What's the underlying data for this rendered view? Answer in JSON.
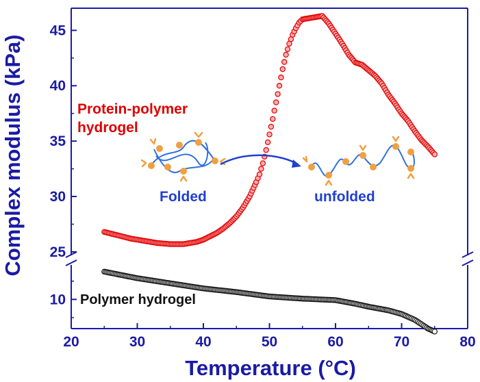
{
  "chart_data": {
    "type": "scatter",
    "title": "",
    "xlabel": "Temperature (°C)",
    "ylabel": "Complex modulus (kPa)",
    "xlim": [
      20,
      80
    ],
    "xticks": [
      "20",
      "30",
      "40",
      "50",
      "60",
      "70",
      "80"
    ],
    "y_axis_broken": true,
    "y_lower_segment": {
      "range": [
        6,
        15
      ],
      "ticks": [
        "10"
      ]
    },
    "y_upper_segment": {
      "range": [
        24.5,
        47
      ],
      "ticks": [
        "25",
        "30",
        "35",
        "40",
        "45"
      ]
    },
    "grid": false,
    "colors": {
      "axis": "#1a1aa6",
      "protein": "#e00000",
      "polymer": "#111111",
      "schematic_line": "#2f6fe0",
      "schematic_node": "#f0a040"
    },
    "series": [
      {
        "name": "Protein-polymer hydrogel",
        "color": "#e00000",
        "x": [
          25,
          27,
          29,
          31,
          33,
          35,
          37,
          39,
          40,
          41,
          42,
          43,
          44,
          45,
          46,
          47,
          48,
          48.5,
          49,
          49.5,
          50,
          50.5,
          51,
          51.5,
          52,
          52.5,
          53,
          53.5,
          54,
          54.5,
          55,
          56,
          57,
          58,
          59,
          60,
          61,
          62,
          63,
          64,
          65,
          66,
          67,
          68,
          69,
          70,
          71,
          72,
          73,
          74,
          75
        ],
        "y": [
          26.8,
          26.5,
          26.2,
          26.0,
          25.8,
          25.7,
          25.7,
          25.9,
          26.1,
          26.4,
          26.7,
          27.1,
          27.6,
          28.2,
          29.0,
          30.0,
          31.3,
          32.0,
          33.0,
          34.2,
          35.6,
          37.0,
          38.5,
          40.0,
          41.5,
          42.8,
          43.8,
          44.6,
          45.2,
          45.7,
          46.0,
          46.1,
          46.2,
          46.3,
          45.6,
          44.7,
          43.8,
          42.8,
          42.1,
          41.9,
          41.4,
          40.9,
          40.2,
          39.2,
          38.4,
          37.5,
          36.8,
          35.9,
          35.1,
          34.5,
          33.8
        ]
      },
      {
        "name": "Polymer hydrogel",
        "color": "#111111",
        "x": [
          25,
          30,
          35,
          40,
          45,
          50,
          55,
          60,
          63,
          65,
          68,
          70,
          72,
          74,
          75
        ],
        "y": [
          13.8,
          12.9,
          12.2,
          11.5,
          11.0,
          10.4,
          10.1,
          9.9,
          9.4,
          9.0,
          8.5,
          8.0,
          7.2,
          6.0,
          5.6
        ]
      }
    ],
    "annotations": {
      "protein_label_line1": "Protein-polymer",
      "protein_label_line2": "hydrogel",
      "polymer_label": "Polymer hydrogel",
      "folded_label": "Folded",
      "unfolded_label": "unfolded"
    }
  }
}
